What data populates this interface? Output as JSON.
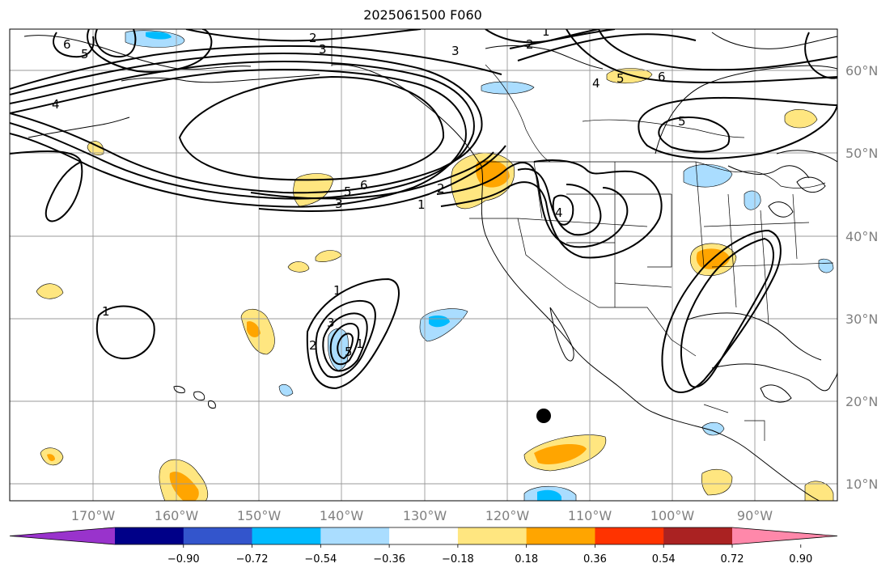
{
  "title": "2025061500 F060",
  "map": {
    "lat_labels": [
      "60°N",
      "50°N",
      "40°N",
      "30°N",
      "20°N",
      "10°N"
    ],
    "lon_labels": [
      "170°W",
      "160°W",
      "150°W",
      "140°W",
      "130°W",
      "120°W",
      "110°W",
      "100°W",
      "90°W"
    ],
    "contour_labels": [
      "6",
      "5",
      "2",
      "3",
      "3",
      "2",
      "1",
      "4",
      "4",
      "5",
      "6",
      "5",
      "5",
      "6",
      "3",
      "1",
      "2",
      "4",
      "1",
      "1",
      "3",
      "2",
      "5",
      "1"
    ]
  },
  "colorbar": {
    "tick_labels": [
      "−0.90",
      "−0.72",
      "−0.54",
      "−0.36",
      "−0.18",
      "0.18",
      "0.36",
      "0.54",
      "0.72",
      "0.90"
    ],
    "colors": [
      "#9933cc",
      "#000088",
      "#3355cc",
      "#00bbff",
      "#aaddff",
      "#ffffff",
      "#ffe680",
      "#ffa500",
      "#ff3300",
      "#aa2222",
      "#ff88aa"
    ]
  }
}
